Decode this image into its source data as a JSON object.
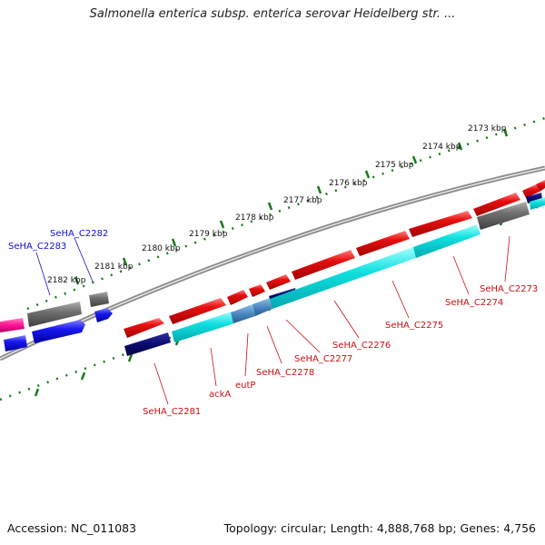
{
  "header": {
    "title": "Salmonella enterica subsp. enterica serovar Heidelberg str. ..."
  },
  "footer": {
    "accession": "Accession: NC_011083",
    "summary": "Topology: circular; Length: 4,888,768 bp; Genes: 4,756"
  },
  "ruler": {
    "ticks": [
      "2173 kbp",
      "2174 kbp",
      "2175 kbp",
      "2176 kbp",
      "2177 kbp",
      "2178 kbp",
      "2179 kbp",
      "2180 kbp",
      "2181 kbp",
      "2182 kbp"
    ]
  },
  "gene_labels": [
    {
      "text": "SeHA_C2282",
      "color": "#1010cc"
    },
    {
      "text": "SeHA_C2283",
      "color": "#1010cc"
    },
    {
      "text": "SeHA_C2281",
      "color": "#cc1010"
    },
    {
      "text": "ackA",
      "color": "#cc1010"
    },
    {
      "text": "eutP",
      "color": "#cc1010"
    },
    {
      "text": "SeHA_C2278",
      "color": "#cc1010"
    },
    {
      "text": "SeHA_C2277",
      "color": "#cc1010"
    },
    {
      "text": "SeHA_C2276",
      "color": "#cc1010"
    },
    {
      "text": "SeHA_C2275",
      "color": "#cc1010"
    },
    {
      "text": "SeHA_C2274",
      "color": "#cc1010"
    },
    {
      "text": "SeHA_C2273",
      "color": "#cc1010"
    }
  ],
  "colors": {
    "forward_cds": "#e01010",
    "reverse_cds": "#1010e0",
    "rna": "#00dede",
    "pseudo": "#707070",
    "navy": "#0a0a70",
    "pink": "#ff1493",
    "backbone": "#808080",
    "ruler_ticks": "#1a7a1a"
  }
}
